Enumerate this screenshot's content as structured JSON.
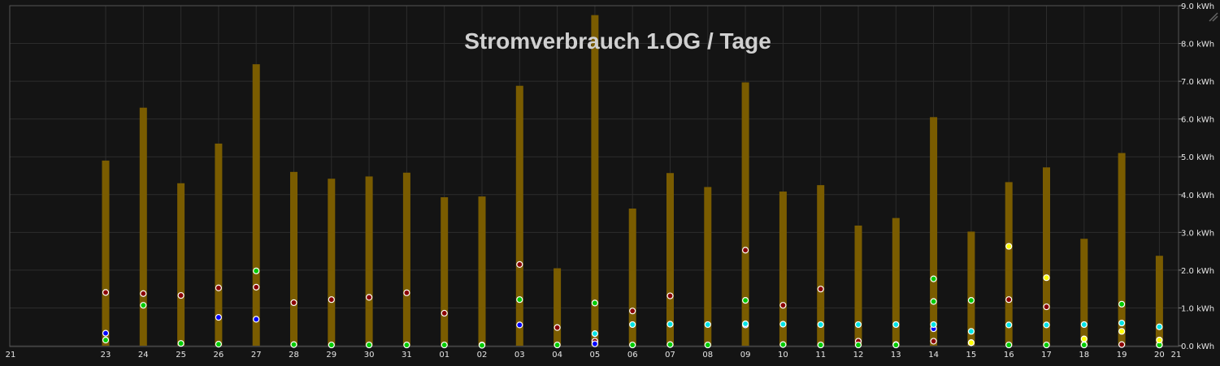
{
  "chart_data": {
    "type": "bar",
    "title": "Stromverbrauch 1.OG / Tage",
    "xlabel": "",
    "ylabel": "",
    "ylim": [
      0,
      9
    ],
    "y_ticks": [
      "0.0 kWh",
      "1.0 kWh",
      "2.0 kWh",
      "3.0 kWh",
      "4.0 kWh",
      "5.0 kWh",
      "6.0 kWh",
      "7.0 kWh",
      "8.0 kWh",
      "9.0 kWh"
    ],
    "x_edge_labels": [
      "21",
      "21"
    ],
    "categories": [
      "23",
      "24",
      "25",
      "26",
      "27",
      "28",
      "29",
      "30",
      "31",
      "01",
      "02",
      "03",
      "04",
      "05",
      "06",
      "07",
      "08",
      "09",
      "10",
      "11",
      "12",
      "13",
      "14",
      "15",
      "16",
      "17",
      "18",
      "19",
      "20"
    ],
    "grid": true,
    "colors": {
      "background": "#141414",
      "grid": "#2c2c2c",
      "bar": "#7a5c00",
      "dark_red": "#8b0000",
      "blue": "#0000ff",
      "green": "#00cc00",
      "cyan": "#00e5e5",
      "yellow": "#ffff00"
    },
    "series": [
      {
        "type": "bar",
        "color": "#7a5c00",
        "values": [
          4.9,
          6.3,
          4.3,
          5.35,
          7.45,
          4.6,
          4.42,
          4.48,
          4.58,
          3.93,
          3.95,
          6.88,
          2.05,
          8.75,
          3.63,
          4.57,
          4.2,
          6.97,
          4.08,
          4.25,
          3.18,
          3.38,
          6.05,
          3.02,
          4.33,
          4.72,
          2.83,
          5.1,
          2.38
        ]
      },
      {
        "type": "scatter",
        "color": "#8b0000",
        "values": [
          1.41,
          1.38,
          1.33,
          1.53,
          1.55,
          1.14,
          1.22,
          1.28,
          1.4,
          0.86,
          0.02,
          2.15,
          0.48,
          0.12,
          0.92,
          1.32,
          null,
          2.53,
          1.07,
          1.5,
          0.12,
          0.03,
          0.12,
          0.08,
          1.22,
          1.03,
          0.03,
          0.03,
          0.02
        ]
      },
      {
        "type": "scatter",
        "color": "#0000ff",
        "values": [
          0.33,
          null,
          null,
          0.75,
          0.7,
          null,
          null,
          null,
          null,
          null,
          null,
          0.55,
          null,
          0.05,
          null,
          null,
          null,
          0.55,
          null,
          null,
          null,
          null,
          0.45,
          null,
          null,
          null,
          null,
          null,
          null
        ]
      },
      {
        "type": "scatter",
        "color": "#00cc00",
        "values": [
          0.15,
          1.07,
          0.06,
          0.04,
          1.98,
          0.03,
          0.02,
          0.02,
          0.02,
          0.02,
          0.01,
          1.22,
          0.02,
          1.13,
          0.02,
          0.03,
          0.02,
          1.2,
          0.03,
          0.02,
          0.02,
          0.02,
          1.17,
          1.2,
          0.02,
          0.02,
          0.02,
          1.1,
          0.02
        ]
      },
      {
        "type": "scatter",
        "color": "#00cc00",
        "values": [
          null,
          null,
          null,
          null,
          null,
          null,
          null,
          null,
          null,
          null,
          null,
          null,
          null,
          null,
          null,
          null,
          null,
          null,
          null,
          null,
          null,
          null,
          1.77,
          null,
          null,
          null,
          null,
          null,
          null
        ]
      },
      {
        "type": "scatter",
        "color": "#00e5e5",
        "values": [
          null,
          null,
          null,
          null,
          null,
          null,
          null,
          null,
          null,
          null,
          null,
          null,
          null,
          0.32,
          0.56,
          0.57,
          0.56,
          0.58,
          0.57,
          0.56,
          0.56,
          0.56,
          0.56,
          0.38,
          0.55,
          0.55,
          0.56,
          0.6,
          0.5
        ]
      },
      {
        "type": "scatter",
        "color": "#ffff00",
        "values": [
          null,
          null,
          null,
          null,
          null,
          null,
          null,
          null,
          null,
          null,
          null,
          null,
          null,
          null,
          null,
          null,
          null,
          null,
          null,
          null,
          null,
          null,
          null,
          0.08,
          2.63,
          1.8,
          0.18,
          0.38,
          0.15
        ]
      }
    ]
  }
}
